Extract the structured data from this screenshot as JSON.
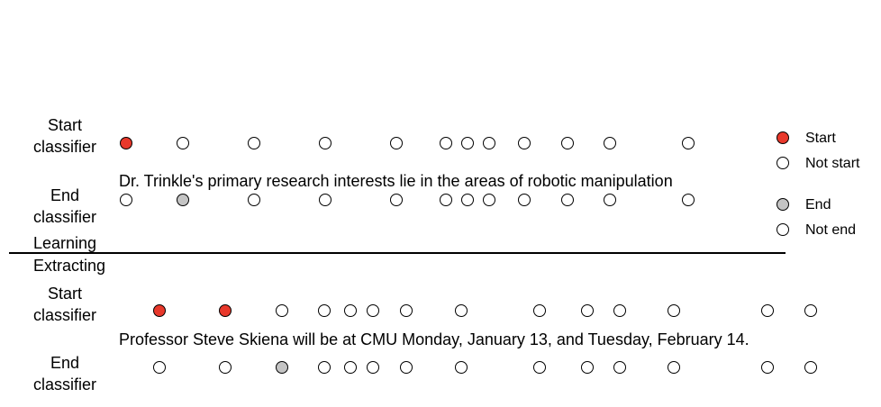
{
  "colors": {
    "start": "#e8382b",
    "end": "#c4c4c4",
    "none": "#ffffff"
  },
  "learning": {
    "start_label": [
      "Start",
      "classifier"
    ],
    "end_label": [
      "End",
      "classifier"
    ],
    "sentence": "Dr. Trinkle's primary research interests lie in the areas of robotic manipulation",
    "start_states": [
      "start",
      "none",
      "none",
      "none",
      "none",
      "none",
      "none",
      "none",
      "none",
      "none",
      "none",
      "none"
    ],
    "end_states": [
      "none",
      "end",
      "none",
      "none",
      "none",
      "none",
      "none",
      "none",
      "none",
      "none",
      "none",
      "none"
    ]
  },
  "section_labels": {
    "learning": "Learning",
    "extracting": "Extracting"
  },
  "extracting": {
    "start_label": [
      "Start",
      "classifier"
    ],
    "end_label": [
      "End",
      "classifier"
    ],
    "sentence": "Professor Steve Skiena will be at CMU Monday, January 13, and Tuesday, February 14.",
    "start_states": [
      "start",
      "start",
      "none",
      "none",
      "none",
      "none",
      "none",
      "none",
      "none",
      "none",
      "none",
      "none",
      "none",
      "none"
    ],
    "end_states": [
      "none",
      "none",
      "end",
      "none",
      "none",
      "none",
      "none",
      "none",
      "none",
      "none",
      "none",
      "none",
      "none",
      "none"
    ]
  },
  "legend": {
    "start": "Start",
    "not_start": "Not start",
    "end": "End",
    "not_end": "Not end"
  }
}
